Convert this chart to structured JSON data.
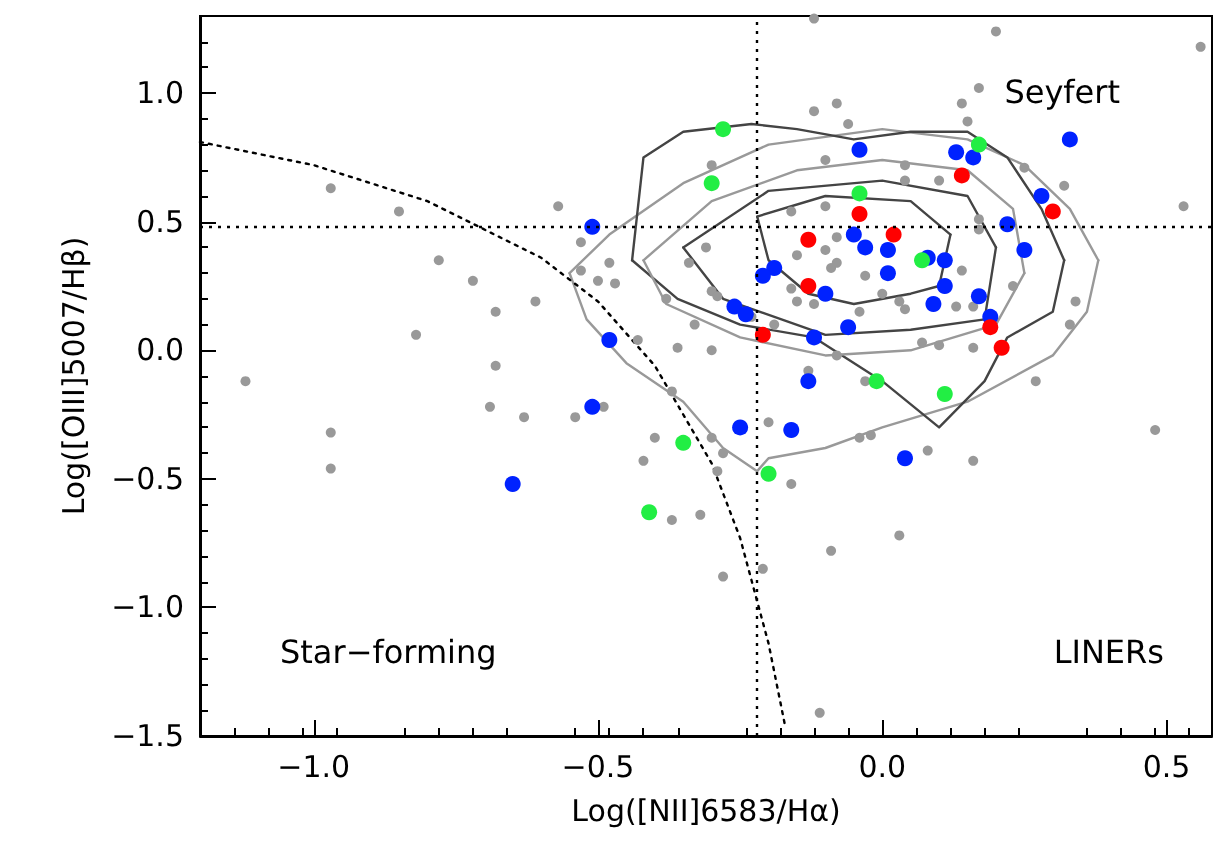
{
  "chart_data": {
    "type": "scatter",
    "xlabel": "Log([NII]6583/Hα)",
    "ylabel": "Log([OIII]5007/Hβ)",
    "xlim": [
      -1.2,
      0.58
    ],
    "ylim": [
      -1.5,
      1.3
    ],
    "xticks": [
      {
        "value": -1.0,
        "label": "−1.0"
      },
      {
        "value": -0.5,
        "label": "−0.5"
      },
      {
        "value": 0.0,
        "label": "0.0"
      },
      {
        "value": 0.5,
        "label": "0.5"
      }
    ],
    "yticks": [
      {
        "value": -1.5,
        "label": "−1.5"
      },
      {
        "value": -1.0,
        "label": "−1.0"
      },
      {
        "value": -0.5,
        "label": "−0.5"
      },
      {
        "value": 0.0,
        "label": "0.0"
      },
      {
        "value": 0.5,
        "label": "0.5"
      },
      {
        "value": 1.0,
        "label": "1.0"
      }
    ],
    "grid": false,
    "annotations": [
      "Seyfert",
      "Star−forming",
      "LINERs"
    ],
    "ref_lines": [
      {
        "axis": "y",
        "value": 0.48,
        "color": "#000000",
        "line_style": "dotted"
      },
      {
        "axis": "x",
        "value": -0.22,
        "color": "#000000",
        "line_style": "dotted"
      }
    ],
    "series": [
      {
        "type": "line",
        "color": "#999999",
        "line_style": "solid",
        "marker": "none",
        "x": [
          -0.55,
          -0.48,
          -0.35,
          -0.2,
          0.0,
          0.15,
          0.25,
          0.33,
          0.38
        ],
        "values": [
          0.3,
          0.45,
          0.65,
          0.8,
          0.86,
          0.82,
          0.72,
          0.55,
          0.35
        ]
      },
      {
        "type": "line",
        "color": "#999999",
        "line_style": "solid",
        "marker": "none",
        "x": [
          -0.55,
          -0.52,
          -0.45,
          -0.35,
          -0.28,
          -0.22,
          -0.2,
          -0.1,
          0.0,
          0.15,
          0.3,
          0.36,
          0.38
        ],
        "values": [
          0.3,
          0.12,
          -0.05,
          -0.2,
          -0.38,
          -0.47,
          -0.42,
          -0.38,
          -0.3,
          -0.2,
          -0.02,
          0.15,
          0.35
        ]
      },
      {
        "type": "line",
        "color": "#444444",
        "line_style": "solid",
        "marker": "none",
        "x": [
          -0.44,
          -0.43,
          -0.42,
          -0.35,
          -0.23,
          -0.15,
          -0.05,
          0.05,
          0.15,
          0.22,
          0.28,
          0.32
        ],
        "values": [
          0.35,
          0.55,
          0.75,
          0.85,
          0.88,
          0.86,
          0.82,
          0.85,
          0.85,
          0.75,
          0.55,
          0.35
        ]
      },
      {
        "type": "line",
        "color": "#444444",
        "line_style": "solid",
        "marker": "none",
        "x": [
          -0.44,
          -0.36,
          -0.25,
          -0.12,
          0.0,
          0.1,
          0.18,
          0.22,
          0.3,
          0.32
        ],
        "values": [
          0.35,
          0.2,
          0.1,
          0.05,
          -0.12,
          -0.3,
          -0.12,
          0.05,
          0.15,
          0.35
        ]
      },
      {
        "type": "line",
        "color": "#999999",
        "line_style": "solid",
        "marker": "none",
        "x": [
          -0.42,
          -0.3,
          -0.15,
          0.0,
          0.15,
          0.23,
          0.25
        ],
        "values": [
          0.35,
          0.58,
          0.7,
          0.74,
          0.7,
          0.55,
          0.3
        ]
      },
      {
        "type": "line",
        "color": "#999999",
        "line_style": "solid",
        "marker": "none",
        "x": [
          -0.42,
          -0.38,
          -0.25,
          -0.1,
          0.05,
          0.2,
          0.25
        ],
        "values": [
          0.35,
          0.18,
          0.05,
          -0.02,
          0.0,
          0.1,
          0.3
        ]
      },
      {
        "type": "line",
        "color": "#444444",
        "line_style": "solid",
        "marker": "none",
        "x": [
          -0.35,
          -0.2,
          0.0,
          0.15,
          0.2
        ],
        "values": [
          0.4,
          0.62,
          0.66,
          0.6,
          0.4
        ]
      },
      {
        "type": "line",
        "color": "#444444",
        "line_style": "solid",
        "marker": "none",
        "x": [
          -0.35,
          -0.28,
          -0.1,
          0.05,
          0.18,
          0.2
        ],
        "values": [
          0.4,
          0.2,
          0.06,
          0.08,
          0.12,
          0.4
        ]
      },
      {
        "type": "line",
        "color": "#444444",
        "line_style": "solid",
        "marker": "none",
        "x": [
          -0.22,
          -0.1,
          0.05,
          0.12
        ],
        "values": [
          0.52,
          0.6,
          0.58,
          0.45
        ]
      },
      {
        "type": "line",
        "color": "#444444",
        "line_style": "solid",
        "marker": "none",
        "x": [
          -0.22,
          -0.2,
          -0.13,
          -0.05,
          0.05,
          0.1,
          0.12
        ],
        "values": [
          0.52,
          0.35,
          0.22,
          0.18,
          0.22,
          0.25,
          0.45
        ]
      },
      {
        "type": "line",
        "color": "#000000",
        "line_style": "dotted",
        "marker": "none",
        "x": [
          -1.2,
          -1.0,
          -0.8,
          -0.6,
          -0.5,
          -0.4,
          -0.3,
          -0.25,
          -0.2,
          -0.17
        ],
        "values": [
          0.81,
          0.72,
          0.58,
          0.36,
          0.19,
          -0.06,
          -0.44,
          -0.73,
          -1.14,
          -1.47
        ]
      },
      {
        "color": "#999999",
        "marker": "circle",
        "x": [
          -0.97,
          -0.85,
          -0.57,
          -0.53,
          -0.78,
          -0.72,
          -0.53,
          -0.5,
          -0.48,
          -0.47,
          -0.68,
          -0.61,
          -0.82,
          -0.38,
          -0.43,
          -0.36,
          -0.68,
          -0.34,
          -1.12,
          -0.69,
          -0.63,
          -0.54,
          -0.49,
          -0.97,
          -0.97,
          -0.4,
          -0.42,
          -0.37,
          -0.37,
          -0.32,
          -0.3,
          -0.28,
          -0.29,
          -0.28,
          -0.21,
          -0.2,
          -0.16,
          -0.09,
          -0.11,
          -0.04,
          -0.02,
          0.03,
          0.08,
          0.16,
          0.27,
          0.48,
          -0.13,
          -0.03,
          -0.12,
          0.2,
          0.56,
          0.17,
          -0.08,
          -0.12,
          0.14,
          0.15,
          -0.06,
          -0.3,
          -0.1,
          0.04,
          0.1,
          0.25,
          0.32,
          0.53,
          0.04,
          -0.16,
          -0.1,
          0.17,
          0.17,
          -0.08,
          -0.31,
          -0.15,
          -0.1,
          -0.08,
          -0.03,
          -0.09,
          0.14,
          -0.16,
          -0.3,
          -0.29,
          -0.15,
          -0.12,
          0.0,
          0.03,
          0.04,
          -0.04,
          0.13,
          0.16,
          0.34,
          0.33,
          -0.19,
          -0.3,
          -0.08,
          0.07,
          0.1,
          0.16,
          0.23,
          -0.33,
          -0.23
        ],
        "values": [
          0.63,
          0.54,
          0.56,
          0.42,
          0.35,
          0.27,
          0.31,
          0.27,
          0.34,
          0.26,
          0.15,
          0.19,
          0.06,
          0.2,
          0.04,
          0.01,
          -0.06,
          0.34,
          -0.12,
          -0.22,
          -0.26,
          -0.26,
          -0.22,
          -0.32,
          -0.46,
          -0.34,
          -0.43,
          -0.66,
          -0.16,
          -0.64,
          -0.34,
          -0.4,
          -0.47,
          -0.88,
          -0.85,
          -0.28,
          -0.52,
          -0.78,
          -1.41,
          -0.34,
          -0.33,
          -0.72,
          -0.39,
          -0.43,
          -0.12,
          -0.31,
          -0.08,
          -0.12,
          1.29,
          1.24,
          1.18,
          1.02,
          0.96,
          0.93,
          0.96,
          0.89,
          0.88,
          0.72,
          0.74,
          0.72,
          0.66,
          0.71,
          0.64,
          0.56,
          0.66,
          0.54,
          0.56,
          0.51,
          0.47,
          0.44,
          0.4,
          0.37,
          0.39,
          0.34,
          0.29,
          0.32,
          0.31,
          0.24,
          0.23,
          0.21,
          0.19,
          0.18,
          0.22,
          0.19,
          0.16,
          0.15,
          0.17,
          0.17,
          0.19,
          0.1,
          0.1,
          0.0,
          -0.02,
          0.03,
          0.02,
          0.01,
          0.25,
          0.1,
          0.13
        ]
      },
      {
        "color": "#0022ff",
        "marker": "circle",
        "x": [
          -0.51,
          -0.48,
          -0.51,
          -0.65,
          -0.25,
          -0.16,
          -0.13,
          0.04,
          -0.04,
          0.13,
          0.16,
          0.33,
          0.28,
          0.22,
          0.25,
          -0.05,
          -0.03,
          0.01,
          0.01,
          0.08,
          0.11,
          0.11,
          0.09,
          0.17,
          0.19,
          -0.19,
          -0.21,
          -0.1,
          -0.26,
          -0.24,
          -0.06,
          -0.12
        ],
        "values": [
          0.48,
          0.04,
          -0.22,
          -0.52,
          -0.3,
          -0.31,
          -0.12,
          -0.42,
          0.78,
          0.77,
          0.75,
          0.82,
          0.6,
          0.49,
          0.39,
          0.45,
          0.4,
          0.39,
          0.3,
          0.36,
          0.35,
          0.25,
          0.18,
          0.21,
          0.13,
          0.32,
          0.29,
          0.22,
          0.17,
          0.14,
          0.09,
          0.05
        ]
      },
      {
        "color": "#ff0000",
        "marker": "circle",
        "x": [
          0.21,
          0.14,
          0.3,
          -0.04,
          0.02,
          -0.13,
          -0.13,
          -0.21,
          0.19
        ],
        "values": [
          0.01,
          0.68,
          0.54,
          0.53,
          0.45,
          0.43,
          0.25,
          0.06,
          0.09
        ]
      },
      {
        "color": "#22ee44",
        "marker": "circle",
        "x": [
          -0.35,
          -0.41,
          -0.2,
          -0.01,
          0.11,
          -0.28,
          -0.3,
          0.17,
          -0.04,
          0.07
        ],
        "values": [
          -0.36,
          -0.63,
          -0.48,
          -0.12,
          -0.17,
          0.86,
          0.65,
          0.8,
          0.61,
          0.35
        ]
      }
    ]
  }
}
